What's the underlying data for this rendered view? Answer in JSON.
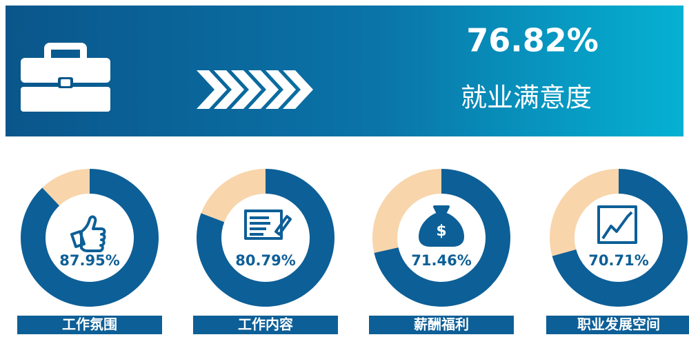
{
  "headline": {
    "value": 76.82,
    "value_label": "76.82%",
    "title": "就业满意度"
  },
  "chart_data": {
    "type": "donut",
    "categories": [
      "工作氛围",
      "工作内容",
      "薪酬福利",
      "职业发展空间"
    ],
    "values": [
      87.95,
      80.79,
      71.46,
      70.71
    ],
    "value_labels": [
      "87.95%",
      "80.79%",
      "71.46%",
      "70.71%"
    ],
    "ylim": [
      0,
      100
    ],
    "color": "#0d5f97",
    "remainder_color": "#f8d5ab"
  }
}
